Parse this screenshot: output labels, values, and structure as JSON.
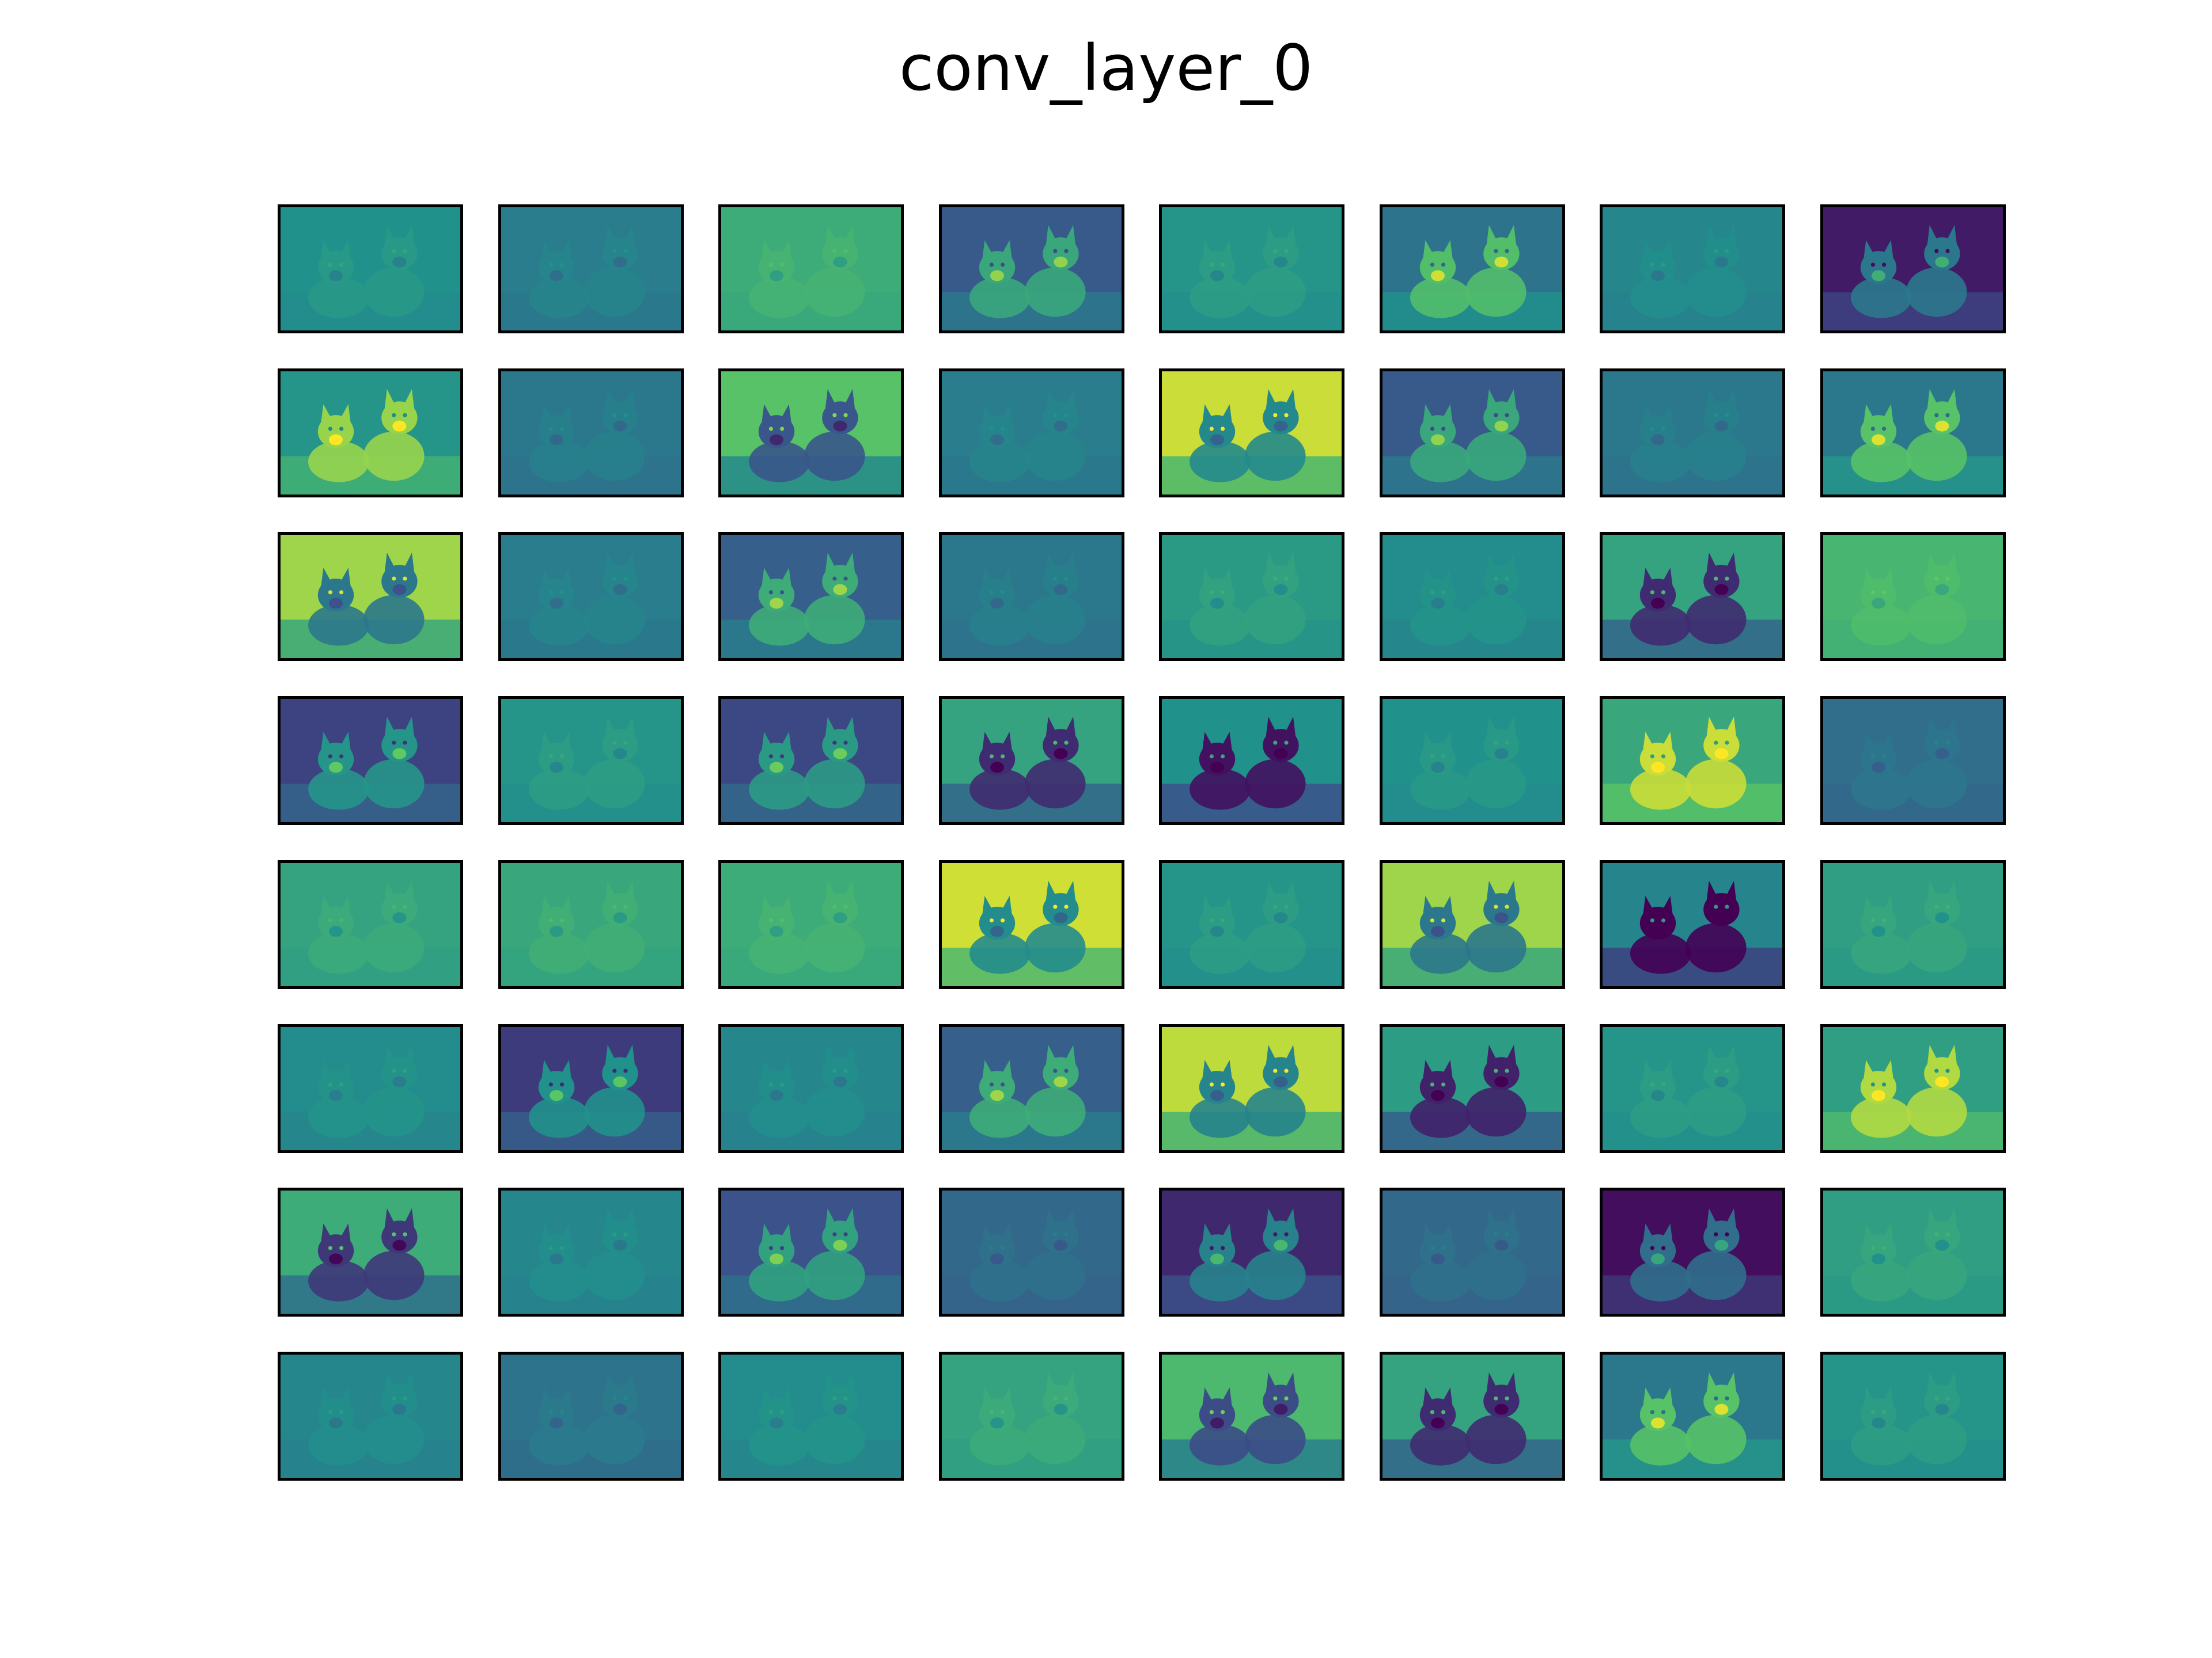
{
  "title": "conv_layer_0",
  "grid": {
    "rows": 8,
    "cols": 8
  },
  "colormap": "viridis",
  "colors": {
    "background": "#ffffff",
    "frame": "#000000",
    "viridis": [
      "#440154",
      "#3b528b",
      "#21918c",
      "#5ec962",
      "#fde725"
    ]
  },
  "feature_maps": [
    {
      "index": 0,
      "base": 0.5,
      "pattern": "edges"
    },
    {
      "index": 1,
      "base": 0.42,
      "pattern": "edges"
    },
    {
      "index": 2,
      "base": 0.62,
      "pattern": "edges"
    },
    {
      "index": 3,
      "base": 0.28,
      "pattern": "bright-dogs"
    },
    {
      "index": 4,
      "base": 0.52,
      "pattern": "edges"
    },
    {
      "index": 5,
      "base": 0.38,
      "pattern": "bright-dogs"
    },
    {
      "index": 6,
      "base": 0.46,
      "pattern": "edges"
    },
    {
      "index": 7,
      "base": 0.08,
      "pattern": "bright-dogs"
    },
    {
      "index": 8,
      "base": 0.52,
      "pattern": "bright-dogs"
    },
    {
      "index": 9,
      "base": 0.4,
      "pattern": "edges"
    },
    {
      "index": 10,
      "base": 0.72,
      "pattern": "dark-dogs"
    },
    {
      "index": 11,
      "base": 0.42,
      "pattern": "edges"
    },
    {
      "index": 12,
      "base": 0.92,
      "pattern": "dark-dogs"
    },
    {
      "index": 13,
      "base": 0.28,
      "pattern": "bright-dogs"
    },
    {
      "index": 14,
      "base": 0.4,
      "pattern": "edges"
    },
    {
      "index": 15,
      "base": 0.4,
      "pattern": "bright-dogs"
    },
    {
      "index": 16,
      "base": 0.85,
      "pattern": "dark-dogs"
    },
    {
      "index": 17,
      "base": 0.42,
      "pattern": "edges"
    },
    {
      "index": 18,
      "base": 0.3,
      "pattern": "bright-dogs"
    },
    {
      "index": 19,
      "base": 0.4,
      "pattern": "edges"
    },
    {
      "index": 20,
      "base": 0.54,
      "pattern": "edges"
    },
    {
      "index": 21,
      "base": 0.48,
      "pattern": "edges"
    },
    {
      "index": 22,
      "base": 0.58,
      "pattern": "dark-dogs"
    },
    {
      "index": 23,
      "base": 0.66,
      "pattern": "edges"
    },
    {
      "index": 24,
      "base": 0.2,
      "pattern": "bright-dogs"
    },
    {
      "index": 25,
      "base": 0.52,
      "pattern": "edges"
    },
    {
      "index": 26,
      "base": 0.22,
      "pattern": "bright-dogs"
    },
    {
      "index": 27,
      "base": 0.58,
      "pattern": "dark-dogs"
    },
    {
      "index": 28,
      "base": 0.5,
      "pattern": "dark-dogs"
    },
    {
      "index": 29,
      "base": 0.5,
      "pattern": "edges"
    },
    {
      "index": 30,
      "base": 0.6,
      "pattern": "bright-dogs"
    },
    {
      "index": 31,
      "base": 0.36,
      "pattern": "edges"
    },
    {
      "index": 32,
      "base": 0.58,
      "pattern": "edges"
    },
    {
      "index": 33,
      "base": 0.6,
      "pattern": "edges"
    },
    {
      "index": 34,
      "base": 0.62,
      "pattern": "edges"
    },
    {
      "index": 35,
      "base": 0.93,
      "pattern": "dark-dogs"
    },
    {
      "index": 36,
      "base": 0.52,
      "pattern": "edges"
    },
    {
      "index": 37,
      "base": 0.85,
      "pattern": "dark-dogs"
    },
    {
      "index": 38,
      "base": 0.45,
      "pattern": "dark-dogs"
    },
    {
      "index": 39,
      "base": 0.56,
      "pattern": "edges"
    },
    {
      "index": 40,
      "base": 0.48,
      "pattern": "edges"
    },
    {
      "index": 41,
      "base": 0.18,
      "pattern": "bright-dogs"
    },
    {
      "index": 42,
      "base": 0.46,
      "pattern": "edges"
    },
    {
      "index": 43,
      "base": 0.3,
      "pattern": "bright-dogs"
    },
    {
      "index": 44,
      "base": 0.9,
      "pattern": "dark-dogs"
    },
    {
      "index": 45,
      "base": 0.55,
      "pattern": "dark-dogs"
    },
    {
      "index": 46,
      "base": 0.52,
      "pattern": "edges"
    },
    {
      "index": 47,
      "base": 0.56,
      "pattern": "bright-dogs"
    },
    {
      "index": 48,
      "base": 0.62,
      "pattern": "dark-dogs"
    },
    {
      "index": 49,
      "base": 0.46,
      "pattern": "edges"
    },
    {
      "index": 50,
      "base": 0.25,
      "pattern": "bright-dogs"
    },
    {
      "index": 51,
      "base": 0.34,
      "pattern": "edges"
    },
    {
      "index": 52,
      "base": 0.12,
      "pattern": "bright-dogs"
    },
    {
      "index": 53,
      "base": 0.34,
      "pattern": "edges"
    },
    {
      "index": 54,
      "base": 0.04,
      "pattern": "bright-dogs"
    },
    {
      "index": 55,
      "base": 0.56,
      "pattern": "edges"
    },
    {
      "index": 56,
      "base": 0.46,
      "pattern": "edges"
    },
    {
      "index": 57,
      "base": 0.38,
      "pattern": "edges"
    },
    {
      "index": 58,
      "base": 0.48,
      "pattern": "edges"
    },
    {
      "index": 59,
      "base": 0.58,
      "pattern": "edges"
    },
    {
      "index": 60,
      "base": 0.68,
      "pattern": "dark-dogs"
    },
    {
      "index": 61,
      "base": 0.58,
      "pattern": "dark-dogs"
    },
    {
      "index": 62,
      "base": 0.4,
      "pattern": "bright-dogs"
    },
    {
      "index": 63,
      "base": 0.52,
      "pattern": "edges"
    }
  ]
}
